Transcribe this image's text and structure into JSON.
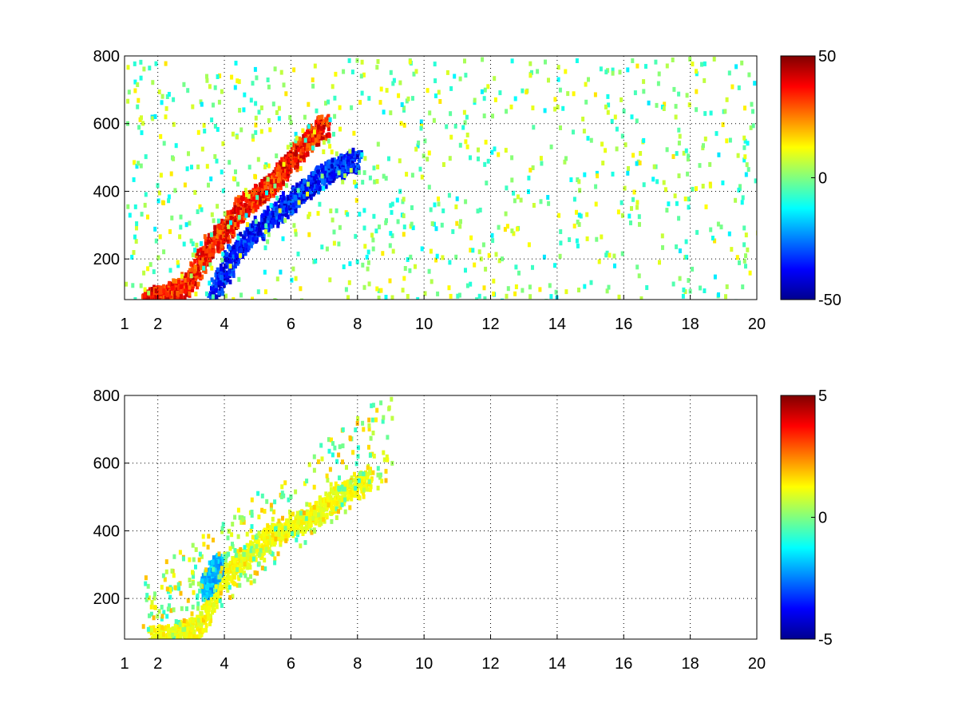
{
  "chart_data": [
    {
      "type": "heatmap",
      "title": "",
      "xlabel": "",
      "ylabel": "",
      "xlim": [
        1,
        20
      ],
      "ylim": [
        80,
        800
      ],
      "x_ticks": [
        1,
        2,
        4,
        6,
        8,
        10,
        12,
        14,
        16,
        18,
        20
      ],
      "x_tick_labels": [
        "1",
        "2",
        "4",
        "6",
        "8",
        "10",
        "12",
        "14",
        "16",
        "18",
        "20"
      ],
      "y_ticks": [
        200,
        400,
        600,
        800
      ],
      "y_tick_labels": [
        "200",
        "400",
        "600",
        "800"
      ],
      "grid": "dotted",
      "colormap": "jet",
      "colorbar": {
        "range": [
          -50,
          50
        ],
        "ticks": [
          50,
          0,
          -50
        ],
        "tick_labels": [
          "50",
          "0",
          "-50"
        ],
        "placement": "right"
      },
      "structures": [
        {
          "name": "",
          "x": [
            1.6,
            2.0,
            2.5,
            3.0,
            3.5,
            4.0,
            4.5,
            5.0,
            5.5,
            6.0,
            6.5,
            7.0
          ],
          "y": [
            80,
            95,
            105,
            150,
            240,
            290,
            360,
            400,
            440,
            500,
            560,
            600
          ],
          "value": 45
        },
        {
          "name": "",
          "x": [
            3.6,
            4.2,
            4.8,
            5.4,
            6.0,
            6.5,
            7.0,
            7.5,
            8.0
          ],
          "y": [
            100,
            210,
            280,
            330,
            380,
            420,
            460,
            480,
            500
          ],
          "value": -45
        }
      ],
      "scatter_noise": {
        "x_range": [
          1,
          20
        ],
        "y_range": [
          80,
          800
        ],
        "value_range": [
          -15,
          15
        ]
      }
    },
    {
      "type": "heatmap",
      "title": "",
      "xlabel": "",
      "ylabel": "",
      "xlim": [
        1,
        20
      ],
      "ylim": [
        80,
        800
      ],
      "x_ticks": [
        1,
        2,
        4,
        6,
        8,
        10,
        12,
        14,
        16,
        18,
        20
      ],
      "x_tick_labels": [
        "1",
        "2",
        "4",
        "6",
        "8",
        "10",
        "12",
        "14",
        "16",
        "18",
        "20"
      ],
      "y_ticks": [
        200,
        400,
        600,
        800
      ],
      "y_tick_labels": [
        "200",
        "400",
        "600",
        "800"
      ],
      "grid": "dotted",
      "colormap": "jet",
      "colorbar": {
        "range": [
          -5,
          5
        ],
        "ticks": [
          5,
          0,
          -5
        ],
        "tick_labels": [
          "5",
          "0",
          "-5"
        ],
        "placement": "right"
      },
      "structures": [
        {
          "name": "",
          "x": [
            1.8,
            2.5,
            3.2,
            3.8,
            4.5,
            5.2,
            6.0,
            6.8,
            7.5,
            8.3
          ],
          "y": [
            90,
            100,
            120,
            250,
            320,
            380,
            420,
            460,
            520,
            560
          ],
          "value": 1.5
        },
        {
          "name": "",
          "x": [
            3.4,
            3.6,
            3.8
          ],
          "y": [
            230,
            270,
            310
          ],
          "value": -2.5
        }
      ],
      "scatter_noise": {
        "x_range": [
          1.5,
          9
        ],
        "y_range": [
          80,
          800
        ],
        "value_range": [
          -1,
          2
        ]
      }
    }
  ]
}
